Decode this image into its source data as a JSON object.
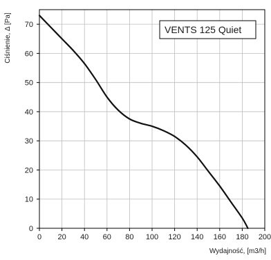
{
  "chart_data": {
    "type": "line",
    "title": "",
    "legend_box": "VENTS 125 Quiet",
    "xlabel": "Wydajność, [m3/h]",
    "ylabel": "Ciśnienie, Δ [Pa]",
    "xlim": [
      0,
      200
    ],
    "ylim": [
      0,
      75
    ],
    "x_ticks": [
      0,
      20,
      40,
      60,
      80,
      100,
      120,
      140,
      160,
      180,
      200
    ],
    "y_ticks": [
      0,
      10,
      20,
      30,
      40,
      50,
      60,
      70
    ],
    "grid": true,
    "legend_placement": "top-right",
    "series": [
      {
        "name": "VENTS 125 Quiet",
        "x": [
          0,
          10,
          20,
          30,
          40,
          50,
          60,
          70,
          80,
          90,
          100,
          110,
          120,
          130,
          140,
          150,
          160,
          170,
          180,
          185
        ],
        "y": [
          73,
          69,
          65,
          61,
          56.5,
          51,
          45,
          40.5,
          37.5,
          36,
          35,
          33.5,
          31.5,
          28.5,
          24.5,
          19.5,
          14.5,
          9,
          3.5,
          0
        ]
      }
    ],
    "colors": {
      "line": "#111111",
      "grid": "#bdbdbd",
      "axis": "#000000"
    }
  }
}
